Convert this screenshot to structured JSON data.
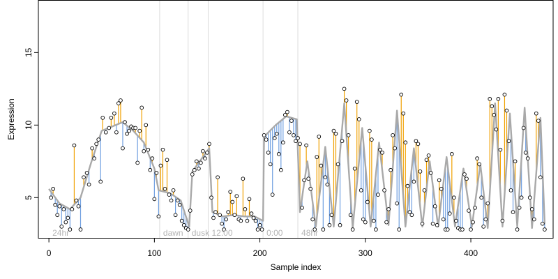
{
  "chart_data": {
    "type": "line",
    "title": "",
    "xlabel": "Sample index",
    "ylabel": "Expression",
    "xlim": [
      -10,
      478
    ],
    "ylim": [
      2.2,
      18.6
    ],
    "x_ticks": [
      0,
      100,
      200,
      300,
      400
    ],
    "y_ticks": [
      5,
      10,
      15
    ],
    "grid": false,
    "legend": "none",
    "colors": {
      "fitted_line": "#a9a9a9",
      "residual_above": "#f0a000",
      "residual_below": "#6f9fe0",
      "point_edge": "#000000",
      "point_fill": "#ffffff",
      "region_divider": "#dcdcdc",
      "region_label": "#b5b5b5"
    },
    "regions": [
      {
        "label": "24hr",
        "x": 0
      },
      {
        "label": "dawn",
        "x": 105
      },
      {
        "label": "dusk",
        "x": 132
      },
      {
        "label": "12:00",
        "x": 151
      },
      {
        "label": "0:00",
        "x": 203
      },
      {
        "label": "48hr",
        "x": 236
      }
    ],
    "series": [
      {
        "role": "fitted",
        "points": [
          [
            0,
            5.6
          ],
          [
            10,
            4.6
          ],
          [
            20,
            4.2
          ],
          [
            30,
            5.0
          ],
          [
            40,
            7.4
          ],
          [
            50,
            9.6
          ],
          [
            60,
            9.9
          ],
          [
            70,
            10.2
          ],
          [
            80,
            9.6
          ],
          [
            90,
            8.8
          ],
          [
            100,
            7.0
          ],
          [
            104,
            5.5
          ],
          [
            115,
            5.3
          ],
          [
            125,
            4.8
          ],
          [
            133,
            3.0
          ],
          [
            136,
            6.8
          ],
          [
            145,
            7.7
          ],
          [
            152,
            8.4
          ],
          [
            155,
            4.0
          ],
          [
            165,
            3.7
          ],
          [
            175,
            3.8
          ],
          [
            185,
            3.7
          ],
          [
            195,
            3.7
          ],
          [
            203,
            3.4
          ],
          [
            204,
            9.2
          ],
          [
            215,
            10.0
          ],
          [
            225,
            10.6
          ],
          [
            235,
            10.4
          ],
          [
            238,
            4.0
          ],
          [
            245,
            7.5
          ],
          [
            253,
            3.0
          ],
          [
            262,
            8.5
          ],
          [
            270,
            3.0
          ],
          [
            280,
            11.5
          ],
          [
            288,
            2.9
          ],
          [
            297,
            9.8
          ],
          [
            305,
            3.0
          ],
          [
            313,
            8.8
          ],
          [
            322,
            3.1
          ],
          [
            330,
            11.0
          ],
          [
            338,
            3.0
          ],
          [
            346,
            8.4
          ],
          [
            354,
            3.0
          ],
          [
            361,
            7.5
          ],
          [
            369,
            3.0
          ],
          [
            377,
            7.8
          ],
          [
            385,
            3.0
          ],
          [
            393,
            7.0
          ],
          [
            401,
            3.0
          ],
          [
            409,
            7.3
          ],
          [
            416,
            2.9
          ],
          [
            423,
            11.5
          ],
          [
            430,
            3.0
          ],
          [
            437,
            10.8
          ],
          [
            444,
            3.0
          ],
          [
            451,
            11.2
          ],
          [
            458,
            2.9
          ],
          [
            466,
            10.5
          ],
          [
            470,
            3.2
          ]
        ]
      },
      {
        "role": "observed",
        "points": [
          [
            2,
            5.0
          ],
          [
            4,
            5.6
          ],
          [
            6,
            4.5
          ],
          [
            8,
            3.8
          ],
          [
            10,
            4.4
          ],
          [
            12,
            3.0
          ],
          [
            14,
            4.2
          ],
          [
            16,
            3.3
          ],
          [
            18,
            3.6
          ],
          [
            20,
            2.8
          ],
          [
            22,
            4.2
          ],
          [
            24,
            8.6
          ],
          [
            26,
            4.8
          ],
          [
            28,
            4.4
          ],
          [
            30,
            2.8
          ],
          [
            33,
            6.4
          ],
          [
            36,
            6.7
          ],
          [
            38,
            5.9
          ],
          [
            41,
            8.4
          ],
          [
            43,
            7.7
          ],
          [
            45,
            8.7
          ],
          [
            47,
            9.0
          ],
          [
            49,
            6.1
          ],
          [
            51,
            10.5
          ],
          [
            54,
            9.5
          ],
          [
            57,
            9.8
          ],
          [
            59,
            10.5
          ],
          [
            62,
            10.8
          ],
          [
            64,
            9.5
          ],
          [
            66,
            11.5
          ],
          [
            68,
            11.7
          ],
          [
            70,
            8.4
          ],
          [
            72,
            10.2
          ],
          [
            74,
            9.4
          ],
          [
            76,
            9.6
          ],
          [
            78,
            9.9
          ],
          [
            80,
            9.8
          ],
          [
            82,
            9.8
          ],
          [
            84,
            7.4
          ],
          [
            86,
            9.6
          ],
          [
            88,
            11.2
          ],
          [
            90,
            8.2
          ],
          [
            92,
            10.0
          ],
          [
            94,
            8.3
          ],
          [
            96,
            6.9
          ],
          [
            98,
            7.7
          ],
          [
            100,
            4.9
          ],
          [
            102,
            6.7
          ],
          [
            104,
            3.7
          ],
          [
            106,
            7.2
          ],
          [
            108,
            8.3
          ],
          [
            110,
            5.6
          ],
          [
            112,
            7.6
          ],
          [
            114,
            5.2
          ],
          [
            116,
            4.8
          ],
          [
            118,
            5.5
          ],
          [
            120,
            3.8
          ],
          [
            122,
            4.8
          ],
          [
            124,
            4.5
          ],
          [
            126,
            3.4
          ],
          [
            128,
            3.1
          ],
          [
            130,
            2.9
          ],
          [
            132,
            2.8
          ],
          [
            134,
            4.1
          ],
          [
            136,
            6.6
          ],
          [
            138,
            6.9
          ],
          [
            140,
            7.5
          ],
          [
            142,
            7.0
          ],
          [
            144,
            7.4
          ],
          [
            146,
            8.2
          ],
          [
            148,
            7.7
          ],
          [
            150,
            8.1
          ],
          [
            152,
            8.7
          ],
          [
            154,
            5.0
          ],
          [
            156,
            3.6
          ],
          [
            158,
            4.0
          ],
          [
            160,
            6.4
          ],
          [
            162,
            3.8
          ],
          [
            164,
            3.2
          ],
          [
            166,
            2.8
          ],
          [
            168,
            3.5
          ],
          [
            170,
            4.0
          ],
          [
            172,
            5.4
          ],
          [
            174,
            4.7
          ],
          [
            176,
            3.8
          ],
          [
            178,
            5.1
          ],
          [
            180,
            3.5
          ],
          [
            182,
            3.4
          ],
          [
            184,
            6.3
          ],
          [
            186,
            4.2
          ],
          [
            188,
            3.4
          ],
          [
            190,
            4.9
          ],
          [
            192,
            3.9
          ],
          [
            194,
            3.6
          ],
          [
            196,
            3.4
          ],
          [
            198,
            2.8
          ],
          [
            200,
            3.1
          ],
          [
            202,
            2.8
          ],
          [
            204,
            9.3
          ],
          [
            206,
            9.0
          ],
          [
            208,
            8.1
          ],
          [
            210,
            7.3
          ],
          [
            212,
            5.2
          ],
          [
            214,
            9.1
          ],
          [
            216,
            9.4
          ],
          [
            218,
            8.0
          ],
          [
            220,
            6.9
          ],
          [
            222,
            8.8
          ],
          [
            224,
            10.7
          ],
          [
            226,
            10.9
          ],
          [
            228,
            9.5
          ],
          [
            230,
            10.3
          ],
          [
            232,
            9.3
          ],
          [
            234,
            8.9
          ],
          [
            236,
            9.1
          ],
          [
            238,
            8.7
          ],
          [
            240,
            4.3
          ],
          [
            242,
            6.2
          ],
          [
            244,
            8.6
          ],
          [
            246,
            6.3
          ],
          [
            248,
            5.6
          ],
          [
            250,
            3.5
          ],
          [
            252,
            2.8
          ],
          [
            254,
            7.8
          ],
          [
            256,
            9.2
          ],
          [
            258,
            7.2
          ],
          [
            260,
            2.8
          ],
          [
            262,
            6.4
          ],
          [
            264,
            5.9
          ],
          [
            266,
            3.1
          ],
          [
            268,
            3.8
          ],
          [
            270,
            9.6
          ],
          [
            272,
            9.4
          ],
          [
            274,
            7.3
          ],
          [
            276,
            3.1
          ],
          [
            278,
            8.9
          ],
          [
            280,
            12.5
          ],
          [
            282,
            11.7
          ],
          [
            284,
            9.3
          ],
          [
            286,
            3.8
          ],
          [
            288,
            2.8
          ],
          [
            290,
            7.0
          ],
          [
            292,
            11.6
          ],
          [
            294,
            10.4
          ],
          [
            296,
            5.5
          ],
          [
            298,
            3.5
          ],
          [
            300,
            3.3
          ],
          [
            302,
            4.7
          ],
          [
            304,
            9.6
          ],
          [
            306,
            9.0
          ],
          [
            308,
            3.4
          ],
          [
            310,
            2.8
          ],
          [
            312,
            5.2
          ],
          [
            314,
            8.3
          ],
          [
            316,
            8.1
          ],
          [
            318,
            5.5
          ],
          [
            320,
            3.3
          ],
          [
            322,
            4.2
          ],
          [
            324,
            6.9
          ],
          [
            326,
            9.3
          ],
          [
            328,
            8.4
          ],
          [
            330,
            4.6
          ],
          [
            332,
            2.8
          ],
          [
            334,
            12.1
          ],
          [
            336,
            10.8
          ],
          [
            338,
            8.8
          ],
          [
            340,
            5.8
          ],
          [
            342,
            4.0
          ],
          [
            344,
            3.8
          ],
          [
            346,
            6.1
          ],
          [
            348,
            8.9
          ],
          [
            350,
            8.7
          ],
          [
            352,
            6.8
          ],
          [
            354,
            3.2
          ],
          [
            356,
            5.5
          ],
          [
            358,
            7.6
          ],
          [
            360,
            7.9
          ],
          [
            362,
            6.7
          ],
          [
            364,
            3.2
          ],
          [
            366,
            4.4
          ],
          [
            368,
            3.1
          ],
          [
            370,
            6.2
          ],
          [
            372,
            5.6
          ],
          [
            374,
            3.5
          ],
          [
            376,
            2.8
          ],
          [
            378,
            2.8
          ],
          [
            380,
            3.9
          ],
          [
            382,
            8.0
          ],
          [
            384,
            5.0
          ],
          [
            386,
            3.4
          ],
          [
            388,
            2.9
          ],
          [
            390,
            2.8
          ],
          [
            392,
            2.8
          ],
          [
            394,
            6.6
          ],
          [
            396,
            6.3
          ],
          [
            398,
            4.1
          ],
          [
            400,
            2.8
          ],
          [
            402,
            3.3
          ],
          [
            404,
            4.3
          ],
          [
            406,
            7.7
          ],
          [
            408,
            7.3
          ],
          [
            410,
            5.0
          ],
          [
            412,
            3.0
          ],
          [
            414,
            3.5
          ],
          [
            416,
            4.6
          ],
          [
            418,
            11.8
          ],
          [
            420,
            11.3
          ],
          [
            422,
            10.7
          ],
          [
            424,
            9.7
          ],
          [
            426,
            11.8
          ],
          [
            428,
            8.3
          ],
          [
            430,
            3.4
          ],
          [
            432,
            12.1
          ],
          [
            434,
            11.0
          ],
          [
            436,
            8.9
          ],
          [
            438,
            5.5
          ],
          [
            440,
            4.0
          ],
          [
            442,
            7.5
          ],
          [
            444,
            2.8
          ],
          [
            446,
            4.3
          ],
          [
            448,
            5.0
          ],
          [
            450,
            9.8
          ],
          [
            452,
            8.1
          ],
          [
            454,
            7.7
          ],
          [
            456,
            5.0
          ],
          [
            458,
            4.2
          ],
          [
            460,
            3.5
          ],
          [
            462,
            10.8
          ],
          [
            464,
            10.3
          ],
          [
            466,
            6.4
          ],
          [
            468,
            3.2
          ],
          [
            470,
            2.8
          ]
        ]
      }
    ]
  }
}
